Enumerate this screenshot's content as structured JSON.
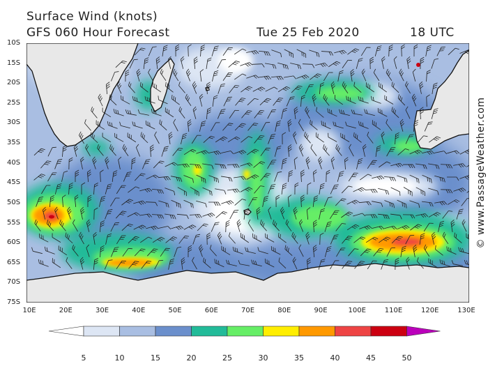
{
  "header": {
    "title": "Surface Wind (knots)",
    "forecast": "GFS 060 Hour Forecast",
    "date": "Tue 25 Feb 2020",
    "time": "18 UTC"
  },
  "copyright": "© www.PassageWeather.com",
  "map": {
    "lat_labels": [
      "10S",
      "15S",
      "20S",
      "25S",
      "30S",
      "35S",
      "40S",
      "45S",
      "50S",
      "55S",
      "60S",
      "65S",
      "70S",
      "75S"
    ],
    "lon_labels": [
      "10E",
      "20E",
      "30E",
      "40E",
      "50E",
      "60E",
      "70E",
      "80E",
      "90E",
      "100E",
      "110E",
      "120E",
      "130E"
    ],
    "lat_range": [
      -10,
      -75
    ],
    "lon_range": [
      10,
      130
    ],
    "land_color": "#e8e8e8",
    "coast_color": "#111111"
  },
  "legend": {
    "labels": [
      "5",
      "10",
      "15",
      "20",
      "25",
      "30",
      "35",
      "40",
      "45",
      "50"
    ],
    "colors": [
      "#ffffff",
      "#dde6f4",
      "#a9bee2",
      "#6b8fcc",
      "#22bb99",
      "#66ee66",
      "#ffee00",
      "#ff9900",
      "#ee4444",
      "#cc0011",
      "#bb00bb"
    ]
  }
}
